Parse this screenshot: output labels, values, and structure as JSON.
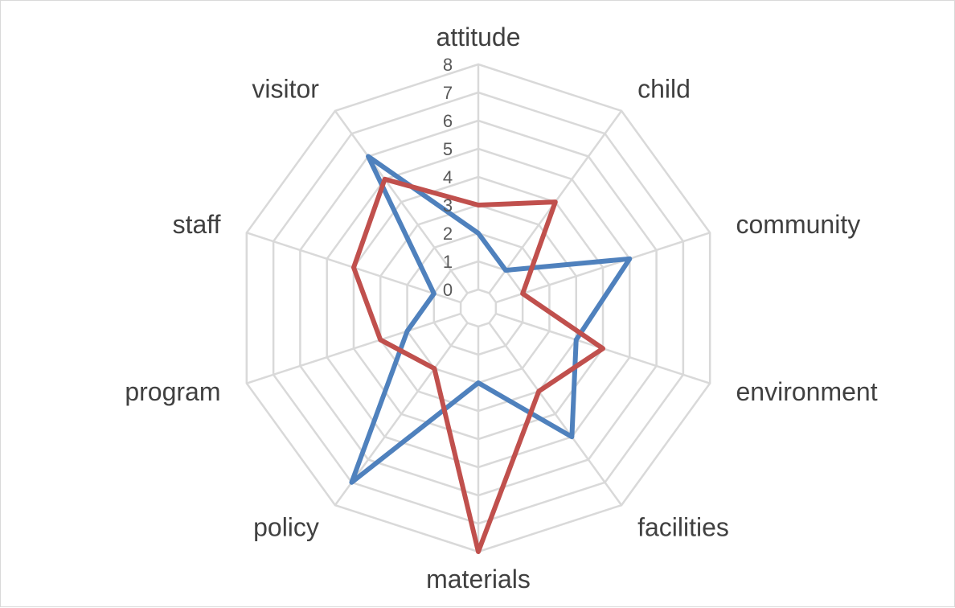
{
  "chart_data": {
    "type": "radar",
    "categories": [
      "attitude",
      "child",
      "community",
      "environment",
      "facilities",
      "materials",
      "policy",
      "program",
      "staff",
      "visitor"
    ],
    "r_ticks": [
      "0",
      "1",
      "2",
      "3",
      "4",
      "5",
      "6",
      "7",
      "8"
    ],
    "rlim": [
      0,
      8
    ],
    "grid": true,
    "legend": "none",
    "series": [
      {
        "color": "#4f81bd",
        "values": [
          2,
          1,
          5,
          3,
          5,
          2,
          7,
          2,
          1,
          6
        ]
      },
      {
        "color": "#c0504d",
        "values": [
          3,
          4,
          1,
          4,
          3,
          8,
          2,
          3,
          4,
          5
        ]
      }
    ]
  }
}
